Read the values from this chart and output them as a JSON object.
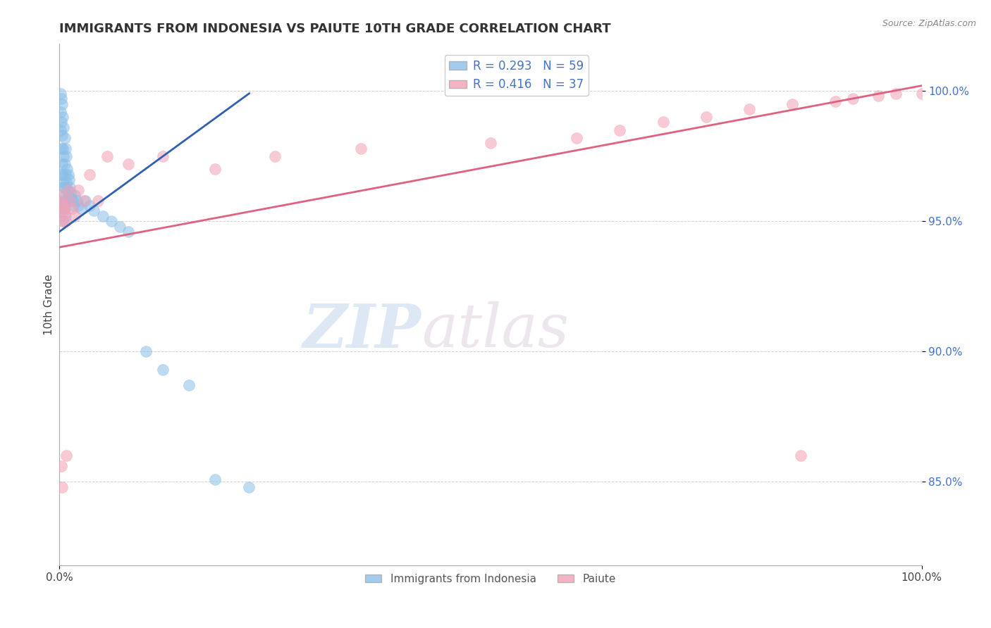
{
  "title": "IMMIGRANTS FROM INDONESIA VS PAIUTE 10TH GRADE CORRELATION CHART",
  "source_text": "Source: ZipAtlas.com",
  "ylabel": "10th Grade",
  "legend1_label": "R = 0.293   N = 59",
  "legend2_label": "R = 0.416   N = 37",
  "legend1_color": "#8bbfe8",
  "legend2_color": "#f4a0b5",
  "trend1_color": "#3060b0",
  "trend2_color": "#e06080",
  "watermark_zip": "ZIP",
  "watermark_atlas": "atlas",
  "xlim": [
    0.0,
    1.0
  ],
  "ylim": [
    0.818,
    1.018
  ],
  "yticks": [
    0.85,
    0.9,
    0.95,
    1.0
  ],
  "ytick_labels": [
    "85.0%",
    "90.0%",
    "95.0%",
    "100.0%"
  ],
  "xtick_labels": [
    "0.0%",
    "100.0%"
  ],
  "xticks": [
    0.0,
    1.0
  ],
  "blue_x": [
    0.001,
    0.001,
    0.001,
    0.002,
    0.002,
    0.002,
    0.002,
    0.003,
    0.003,
    0.003,
    0.003,
    0.003,
    0.004,
    0.004,
    0.004,
    0.004,
    0.005,
    0.005,
    0.005,
    0.005,
    0.005,
    0.006,
    0.006,
    0.006,
    0.006,
    0.007,
    0.007,
    0.007,
    0.007,
    0.008,
    0.008,
    0.008,
    0.009,
    0.009,
    0.01,
    0.01,
    0.011,
    0.011,
    0.012,
    0.013,
    0.014,
    0.015,
    0.016,
    0.018,
    0.02,
    0.022,
    0.025,
    0.03,
    0.035,
    0.04,
    0.05,
    0.06,
    0.07,
    0.08,
    0.1,
    0.12,
    0.15,
    0.18,
    0.22
  ],
  "blue_y": [
    0.999,
    0.992,
    0.985,
    0.997,
    0.988,
    0.978,
    0.968,
    0.995,
    0.983,
    0.972,
    0.963,
    0.955,
    0.99,
    0.978,
    0.968,
    0.958,
    0.986,
    0.975,
    0.965,
    0.957,
    0.95,
    0.982,
    0.972,
    0.963,
    0.955,
    0.978,
    0.968,
    0.96,
    0.952,
    0.975,
    0.965,
    0.958,
    0.97,
    0.962,
    0.968,
    0.96,
    0.966,
    0.958,
    0.963,
    0.961,
    0.959,
    0.958,
    0.956,
    0.96,
    0.958,
    0.956,
    0.955,
    0.958,
    0.956,
    0.954,
    0.952,
    0.95,
    0.948,
    0.946,
    0.9,
    0.893,
    0.887,
    0.851,
    0.848
  ],
  "pink_x": [
    0.002,
    0.003,
    0.003,
    0.004,
    0.005,
    0.006,
    0.007,
    0.008,
    0.01,
    0.012,
    0.015,
    0.018,
    0.022,
    0.028,
    0.035,
    0.045,
    0.055,
    0.08,
    0.12,
    0.18,
    0.25,
    0.35,
    0.5,
    0.6,
    0.65,
    0.7,
    0.75,
    0.8,
    0.85,
    0.9,
    0.92,
    0.95,
    0.97,
    1.0,
    0.002,
    0.003,
    0.86
  ],
  "pink_y": [
    0.96,
    0.956,
    0.95,
    0.957,
    0.954,
    0.953,
    0.95,
    0.86,
    0.962,
    0.958,
    0.955,
    0.952,
    0.962,
    0.958,
    0.968,
    0.958,
    0.975,
    0.972,
    0.975,
    0.97,
    0.975,
    0.978,
    0.98,
    0.982,
    0.985,
    0.988,
    0.99,
    0.993,
    0.995,
    0.996,
    0.997,
    0.998,
    0.999,
    0.999,
    0.856,
    0.848,
    0.86
  ],
  "blue_trend_x": [
    0.0,
    0.22
  ],
  "blue_trend_y": [
    0.946,
    0.999
  ],
  "pink_trend_x": [
    0.0,
    1.0
  ],
  "pink_trend_y": [
    0.94,
    1.002
  ]
}
